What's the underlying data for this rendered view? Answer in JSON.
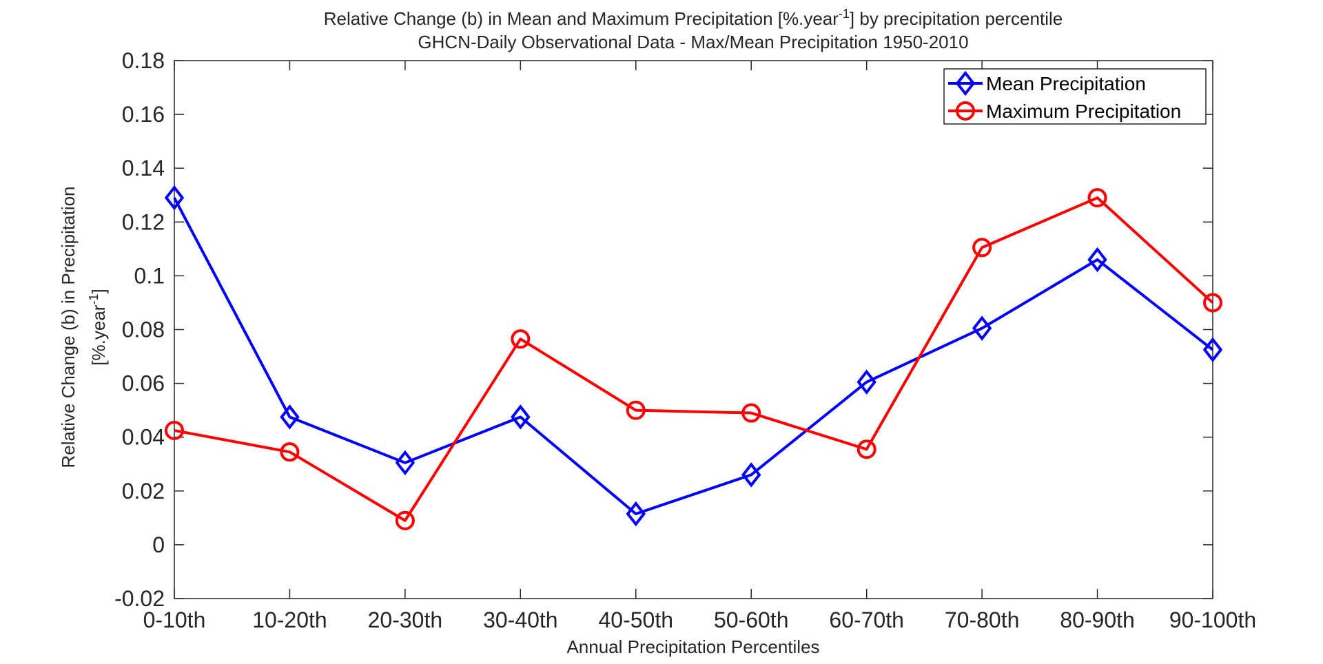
{
  "chart_data": {
    "type": "line",
    "title_line1": {
      "main": "Relative Change (b) in Mean and Maximum Precipitation [%.year",
      "sup": "-1",
      "rest": "] by precipitation percentile"
    },
    "title_line2": "GHCN-Daily Observational Data - Max/Mean Precipitation 1950-2010",
    "xlabel": "Annual Precipitation Percentiles",
    "ylabel_line1": "Relative Change (b) in Precipitation",
    "ylabel_line2": {
      "main": "[%.year",
      "sup": "-1",
      "rest": "]"
    },
    "categories": [
      "0-10th",
      "10-20th",
      "20-30th",
      "30-40th",
      "40-50th",
      "50-60th",
      "60-70th",
      "70-80th",
      "80-90th",
      "90-100th"
    ],
    "ylim": [
      -0.02,
      0.18
    ],
    "yticks": [
      -0.02,
      0,
      0.02,
      0.04,
      0.06,
      0.08,
      0.1,
      0.12,
      0.14,
      0.16,
      0.18
    ],
    "ytick_labels": [
      "-0.02",
      "0",
      "0.02",
      "0.04",
      "0.06",
      "0.08",
      "0.1",
      "0.12",
      "0.14",
      "0.16",
      "0.18"
    ],
    "grid": false,
    "legend_position": "top-right",
    "series": [
      {
        "name": "Mean Precipitation",
        "color": "#0000ff",
        "marker": "diamond",
        "values": [
          0.129,
          0.0475,
          0.0305,
          0.0475,
          0.0115,
          0.026,
          0.0605,
          0.0805,
          0.106,
          0.0725
        ]
      },
      {
        "name": "Maximum Precipitation",
        "color": "#ff0000",
        "marker": "circle",
        "values": [
          0.0425,
          0.0345,
          0.009,
          0.0765,
          0.05,
          0.049,
          0.0355,
          0.1105,
          0.129,
          0.09
        ]
      }
    ]
  }
}
